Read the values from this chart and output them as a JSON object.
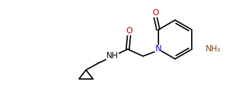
{
  "bg_color": "#ffffff",
  "line_color": "#000000",
  "line_width": 1.3,
  "figsize": [
    3.44,
    1.27
  ],
  "dpi": 100,
  "xlim": [
    0,
    344
  ],
  "ylim": [
    0,
    127
  ],
  "ring_r": 28,
  "nitrogen_color": "#0000cd",
  "oxygen_color": "#cc0000",
  "amino_color": "#8B4513",
  "nh_color": "#000000",
  "font_size_label": 8.0,
  "font_size_atom": 8.5
}
